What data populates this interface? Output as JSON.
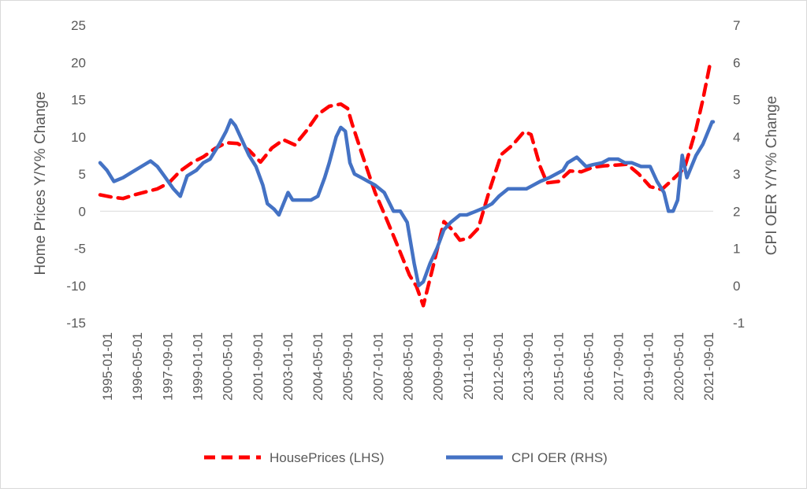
{
  "chart_data": {
    "type": "line",
    "title": "",
    "xlabel": "",
    "ylabel_left": "Home Prices Y/Y% Change",
    "ylabel_right": "CPI OER Y/Y% Change",
    "ylim_left": [
      -15,
      25
    ],
    "ylim_right": [
      -1,
      7
    ],
    "yticks_left": [
      "25",
      "20",
      "15",
      "10",
      "5",
      "0",
      "-5",
      "-10",
      "-15"
    ],
    "yticks_right": [
      "7",
      "6",
      "5",
      "4",
      "3",
      "2",
      "1",
      "0",
      "-1"
    ],
    "x_ticks": [
      "1995-01-01",
      "1996-05-01",
      "1997-09-01",
      "1999-01-01",
      "2000-05-01",
      "2001-09-01",
      "2003-01-01",
      "2004-05-01",
      "2005-09-01",
      "2007-01-01",
      "2008-05-01",
      "2009-09-01",
      "2011-01-01",
      "2012-05-01",
      "2013-09-01",
      "2015-01-01",
      "2016-05-01",
      "2017-09-01",
      "2019-01-01",
      "2020-05-01",
      "2021-09-01"
    ],
    "legend_position": "bottom",
    "grid": "none",
    "series": [
      {
        "name": "HousePrices (LHS)",
        "axis": "left",
        "color": "#ff0000",
        "dash": "dashed",
        "x": [
          1995.0,
          1995.5,
          1996.0,
          1996.5,
          1997.0,
          1997.5,
          1998.0,
          1998.5,
          1999.0,
          1999.5,
          2000.0,
          2000.5,
          2001.0,
          2001.5,
          2002.0,
          2002.5,
          2003.0,
          2003.5,
          2004.0,
          2004.5,
          2005.0,
          2005.5,
          2005.8,
          2006.0,
          2006.5,
          2007.0,
          2007.5,
          2008.0,
          2008.5,
          2008.8,
          2009.1,
          2009.5,
          2010.0,
          2010.3,
          2010.7,
          2011.1,
          2011.5,
          2012.0,
          2012.5,
          2013.0,
          2013.5,
          2013.8,
          2014.2,
          2014.5,
          2015.0,
          2015.5,
          2016.0,
          2016.5,
          2017.0,
          2017.5,
          2018.0,
          2018.5,
          2019.0,
          2019.5,
          2020.0,
          2020.5,
          2021.0,
          2021.3,
          2021.6,
          2021.75
        ],
        "values": [
          2.2,
          1.9,
          1.7,
          2.2,
          2.6,
          3.0,
          3.8,
          5.4,
          6.5,
          7.3,
          8.4,
          9.2,
          9.1,
          8.2,
          6.6,
          8.5,
          9.6,
          8.9,
          10.8,
          13.0,
          14.1,
          14.4,
          13.8,
          11.7,
          7.0,
          2.5,
          -1.1,
          -4.8,
          -8.6,
          -10.1,
          -12.7,
          -7.8,
          -1.4,
          -2.3,
          -3.9,
          -3.6,
          -2.3,
          2.9,
          7.6,
          8.9,
          10.7,
          10.3,
          6.0,
          3.8,
          4.0,
          5.4,
          5.3,
          5.9,
          6.1,
          6.2,
          6.3,
          5.0,
          3.3,
          2.9,
          4.3,
          5.8,
          11.0,
          15.0,
          19.6,
          19.4
        ]
      },
      {
        "name": "CPI OER (RHS)",
        "axis": "right",
        "color": "#4472c4",
        "dash": "solid",
        "x": [
          1995.0,
          1995.3,
          1995.6,
          1996.0,
          1996.4,
          1996.8,
          1997.2,
          1997.5,
          1997.8,
          1998.2,
          1998.5,
          1998.8,
          1999.2,
          1999.5,
          1999.8,
          2000.2,
          2000.5,
          2000.7,
          2000.9,
          2001.2,
          2001.5,
          2001.8,
          2002.1,
          2002.3,
          2002.6,
          2002.8,
          2003.0,
          2003.2,
          2003.4,
          2003.7,
          2003.9,
          2004.2,
          2004.5,
          2004.8,
          2005.0,
          2005.3,
          2005.5,
          2005.7,
          2005.9,
          2006.1,
          2006.4,
          2006.7,
          2007.0,
          2007.4,
          2007.8,
          2008.1,
          2008.4,
          2008.7,
          2008.9,
          2009.1,
          2009.4,
          2009.7,
          2010.0,
          2010.3,
          2010.7,
          2011.0,
          2011.4,
          2011.8,
          2012.1,
          2012.4,
          2012.8,
          2013.2,
          2013.6,
          2013.9,
          2014.2,
          2014.6,
          2014.9,
          2015.2,
          2015.4,
          2015.8,
          2016.2,
          2016.5,
          2016.9,
          2017.2,
          2017.6,
          2017.9,
          2018.2,
          2018.6,
          2019.0,
          2019.3,
          2019.6,
          2019.8,
          2020.0,
          2020.2,
          2020.4,
          2020.6,
          2020.8,
          2021.0,
          2021.3,
          2021.5,
          2021.7,
          2021.75
        ],
        "values": [
          3.3,
          3.1,
          2.8,
          2.9,
          3.05,
          3.2,
          3.35,
          3.2,
          2.95,
          2.6,
          2.4,
          2.95,
          3.1,
          3.3,
          3.4,
          3.8,
          4.15,
          4.45,
          4.3,
          3.9,
          3.5,
          3.2,
          2.7,
          2.2,
          2.05,
          1.9,
          2.2,
          2.5,
          2.3,
          2.3,
          2.3,
          2.3,
          2.4,
          2.9,
          3.3,
          4.0,
          4.25,
          4.15,
          3.3,
          3.0,
          2.9,
          2.8,
          2.7,
          2.5,
          2.0,
          2.0,
          1.7,
          0.6,
          0.0,
          0.1,
          0.6,
          1.0,
          1.5,
          1.7,
          1.9,
          1.9,
          2.0,
          2.1,
          2.2,
          2.4,
          2.6,
          2.6,
          2.6,
          2.7,
          2.8,
          2.9,
          3.0,
          3.1,
          3.3,
          3.45,
          3.2,
          3.25,
          3.3,
          3.4,
          3.4,
          3.3,
          3.3,
          3.2,
          3.2,
          2.8,
          2.5,
          2.0,
          2.0,
          2.3,
          3.5,
          2.9,
          3.2,
          3.5,
          3.8,
          4.1,
          4.4,
          4.4
        ]
      }
    ]
  }
}
